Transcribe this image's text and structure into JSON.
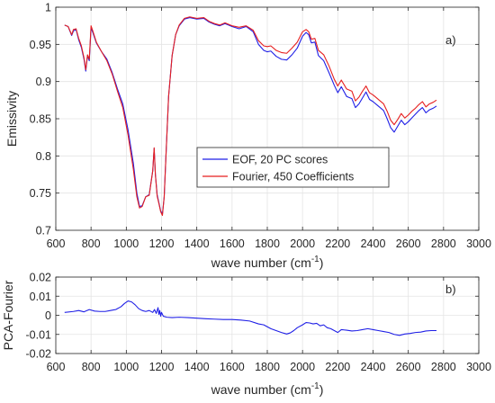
{
  "chart_data": [
    {
      "type": "line",
      "panel_label": "a)",
      "xlabel": "wave number (cm",
      "xlabel_sup": "-1",
      "xlabel_close": ")",
      "ylabel": "Emissivity",
      "xlim": [
        600,
        3000
      ],
      "ylim": [
        0.7,
        1.0
      ],
      "xticks": [
        600,
        800,
        1000,
        1200,
        1400,
        1600,
        1800,
        2000,
        2200,
        2400,
        2600,
        2800,
        3000
      ],
      "yticks": [
        0.7,
        0.75,
        0.8,
        0.85,
        0.9,
        0.95,
        1
      ],
      "ytick_labels": [
        "0.7",
        "0.75",
        "0.8",
        "0.85",
        "0.9",
        "0.95",
        "1"
      ],
      "grid": true,
      "legend_position": "center",
      "series": [
        {
          "name": "EOF, 20 PC scores",
          "color": "#1f1fe6",
          "x": [
            650,
            670,
            690,
            700,
            715,
            730,
            745,
            760,
            770,
            780,
            790,
            800,
            810,
            830,
            860,
            890,
            920,
            950,
            980,
            1010,
            1040,
            1060,
            1075,
            1090,
            1110,
            1130,
            1150,
            1158,
            1165,
            1175,
            1185,
            1195,
            1205,
            1215,
            1225,
            1240,
            1260,
            1280,
            1300,
            1330,
            1360,
            1400,
            1440,
            1470,
            1500,
            1530,
            1560,
            1600,
            1640,
            1680,
            1720,
            1750,
            1780,
            1800,
            1820,
            1850,
            1880,
            1910,
            1940,
            1970,
            2000,
            2020,
            2035,
            2050,
            2070,
            2090,
            2120,
            2150,
            2180,
            2200,
            2220,
            2250,
            2280,
            2300,
            2320,
            2340,
            2360,
            2380,
            2400,
            2420,
            2440,
            2460,
            2480,
            2500,
            2520,
            2540,
            2560,
            2580,
            2600,
            2620,
            2640,
            2660,
            2680,
            2700,
            2720,
            2740,
            2760
          ],
          "y": [
            0.976,
            0.974,
            0.962,
            0.968,
            0.97,
            0.956,
            0.946,
            0.93,
            0.914,
            0.935,
            0.928,
            0.972,
            0.966,
            0.952,
            0.94,
            0.93,
            0.912,
            0.89,
            0.87,
            0.835,
            0.79,
            0.75,
            0.732,
            0.733,
            0.745,
            0.748,
            0.78,
            0.81,
            0.775,
            0.748,
            0.737,
            0.726,
            0.722,
            0.745,
            0.8,
            0.88,
            0.935,
            0.963,
            0.975,
            0.984,
            0.986,
            0.984,
            0.985,
            0.98,
            0.977,
            0.975,
            0.978,
            0.974,
            0.971,
            0.974,
            0.967,
            0.95,
            0.942,
            0.94,
            0.941,
            0.934,
            0.93,
            0.929,
            0.936,
            0.945,
            0.961,
            0.966,
            0.963,
            0.952,
            0.953,
            0.935,
            0.928,
            0.912,
            0.895,
            0.885,
            0.893,
            0.88,
            0.877,
            0.865,
            0.87,
            0.878,
            0.886,
            0.876,
            0.873,
            0.869,
            0.865,
            0.861,
            0.85,
            0.838,
            0.832,
            0.84,
            0.848,
            0.842,
            0.846,
            0.851,
            0.856,
            0.861,
            0.865,
            0.858,
            0.862,
            0.864,
            0.867
          ]
        },
        {
          "name": "Fourier, 450 Coefficients",
          "color": "#e61f1f",
          "x": [
            650,
            670,
            690,
            700,
            715,
            730,
            745,
            760,
            770,
            780,
            790,
            800,
            810,
            830,
            860,
            890,
            920,
            950,
            980,
            1010,
            1040,
            1060,
            1075,
            1090,
            1110,
            1130,
            1150,
            1158,
            1165,
            1175,
            1185,
            1195,
            1205,
            1215,
            1225,
            1240,
            1260,
            1280,
            1300,
            1330,
            1360,
            1400,
            1440,
            1470,
            1500,
            1530,
            1560,
            1600,
            1640,
            1680,
            1720,
            1750,
            1780,
            1800,
            1820,
            1850,
            1880,
            1910,
            1940,
            1970,
            2000,
            2020,
            2035,
            2050,
            2070,
            2090,
            2120,
            2150,
            2180,
            2200,
            2220,
            2250,
            2280,
            2300,
            2320,
            2340,
            2360,
            2380,
            2400,
            2420,
            2440,
            2460,
            2480,
            2500,
            2520,
            2540,
            2560,
            2580,
            2600,
            2620,
            2640,
            2660,
            2680,
            2700,
            2720,
            2740,
            2760
          ],
          "y": [
            0.976,
            0.974,
            0.963,
            0.97,
            0.971,
            0.958,
            0.948,
            0.932,
            0.916,
            0.936,
            0.93,
            0.975,
            0.968,
            0.953,
            0.94,
            0.928,
            0.91,
            0.887,
            0.865,
            0.828,
            0.782,
            0.745,
            0.73,
            0.732,
            0.745,
            0.747,
            0.78,
            0.811,
            0.775,
            0.746,
            0.736,
            0.725,
            0.72,
            0.745,
            0.8,
            0.88,
            0.935,
            0.963,
            0.976,
            0.985,
            0.987,
            0.985,
            0.986,
            0.981,
            0.978,
            0.976,
            0.979,
            0.975,
            0.973,
            0.975,
            0.969,
            0.955,
            0.948,
            0.947,
            0.948,
            0.942,
            0.939,
            0.938,
            0.945,
            0.953,
            0.967,
            0.97,
            0.967,
            0.957,
            0.958,
            0.942,
            0.936,
            0.921,
            0.903,
            0.894,
            0.902,
            0.89,
            0.887,
            0.874,
            0.879,
            0.887,
            0.894,
            0.885,
            0.882,
            0.878,
            0.874,
            0.87,
            0.86,
            0.848,
            0.842,
            0.849,
            0.857,
            0.851,
            0.855,
            0.86,
            0.864,
            0.869,
            0.873,
            0.866,
            0.87,
            0.872,
            0.875
          ]
        }
      ]
    },
    {
      "type": "line",
      "panel_label": "b)",
      "xlabel": "wave number (cm",
      "xlabel_sup": "-1",
      "xlabel_close": ")",
      "ylabel": "PCA-Fourier",
      "xlim": [
        600,
        3000
      ],
      "ylim": [
        -0.02,
        0.02
      ],
      "xticks": [
        600,
        800,
        1000,
        1200,
        1400,
        1600,
        1800,
        2000,
        2200,
        2400,
        2600,
        2800,
        3000
      ],
      "yticks": [
        -0.02,
        -0.01,
        0,
        0.01,
        0.02
      ],
      "ytick_labels": [
        "-0.02",
        "-0.01",
        "0",
        "0.01",
        "0.02"
      ],
      "grid": true,
      "series": [
        {
          "color": "#1f1fe6",
          "x": [
            650,
            700,
            730,
            760,
            790,
            820,
            850,
            880,
            910,
            940,
            970,
            990,
            1010,
            1030,
            1050,
            1070,
            1090,
            1110,
            1130,
            1150,
            1160,
            1170,
            1180,
            1185,
            1190,
            1195,
            1200,
            1210,
            1230,
            1260,
            1300,
            1350,
            1400,
            1450,
            1500,
            1550,
            1600,
            1650,
            1700,
            1750,
            1780,
            1820,
            1850,
            1880,
            1910,
            1930,
            1950,
            1970,
            2000,
            2020,
            2040,
            2060,
            2080,
            2100,
            2120,
            2140,
            2160,
            2180,
            2200,
            2220,
            2250,
            2280,
            2310,
            2340,
            2370,
            2400,
            2430,
            2460,
            2490,
            2520,
            2550,
            2580,
            2610,
            2640,
            2670,
            2700,
            2730,
            2760
          ],
          "y": [
            0.0015,
            0.002,
            0.0025,
            0.0018,
            0.003,
            0.0022,
            0.002,
            0.002,
            0.0025,
            0.003,
            0.0045,
            0.0062,
            0.0075,
            0.007,
            0.0055,
            0.0035,
            0.0025,
            0.002,
            0.0025,
            0.0015,
            0.003,
            0.001,
            0.004,
            0.0005,
            0.0025,
            -0.0005,
            0.0015,
            -0.0005,
            -0.001,
            -0.0012,
            -0.001,
            -0.0012,
            -0.0015,
            -0.0018,
            -0.002,
            -0.0022,
            -0.0022,
            -0.0025,
            -0.003,
            -0.0045,
            -0.005,
            -0.007,
            -0.008,
            -0.009,
            -0.0098,
            -0.0092,
            -0.008,
            -0.0065,
            -0.005,
            -0.0038,
            -0.004,
            -0.0045,
            -0.0042,
            -0.0055,
            -0.005,
            -0.0065,
            -0.007,
            -0.008,
            -0.009,
            -0.0075,
            -0.0078,
            -0.0082,
            -0.008,
            -0.0075,
            -0.007,
            -0.0075,
            -0.008,
            -0.0085,
            -0.009,
            -0.01,
            -0.0105,
            -0.0098,
            -0.0095,
            -0.009,
            -0.0088,
            -0.0082,
            -0.008,
            -0.008
          ]
        }
      ]
    }
  ]
}
